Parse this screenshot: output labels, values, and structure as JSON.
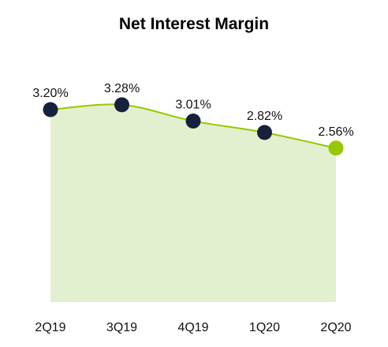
{
  "chart_data": {
    "type": "area",
    "title": "Net Interest Margin",
    "xlabel": "",
    "ylabel": "",
    "categories": [
      "2Q19",
      "3Q19",
      "4Q19",
      "1Q20",
      "2Q20"
    ],
    "values": [
      3.2,
      3.28,
      3.01,
      2.82,
      2.56
    ],
    "data_labels": [
      "3.20%",
      "3.28%",
      "3.01%",
      "2.82%",
      "2.56%"
    ],
    "value_suffix": "%",
    "ylim": [
      0,
      3.7
    ],
    "grid": false,
    "legend": "none",
    "colors": {
      "line": "#97c800",
      "fill": "#e2f0cf",
      "marker": "#17213d",
      "highlight_marker": "#97c800"
    },
    "highlight_index": 4
  }
}
